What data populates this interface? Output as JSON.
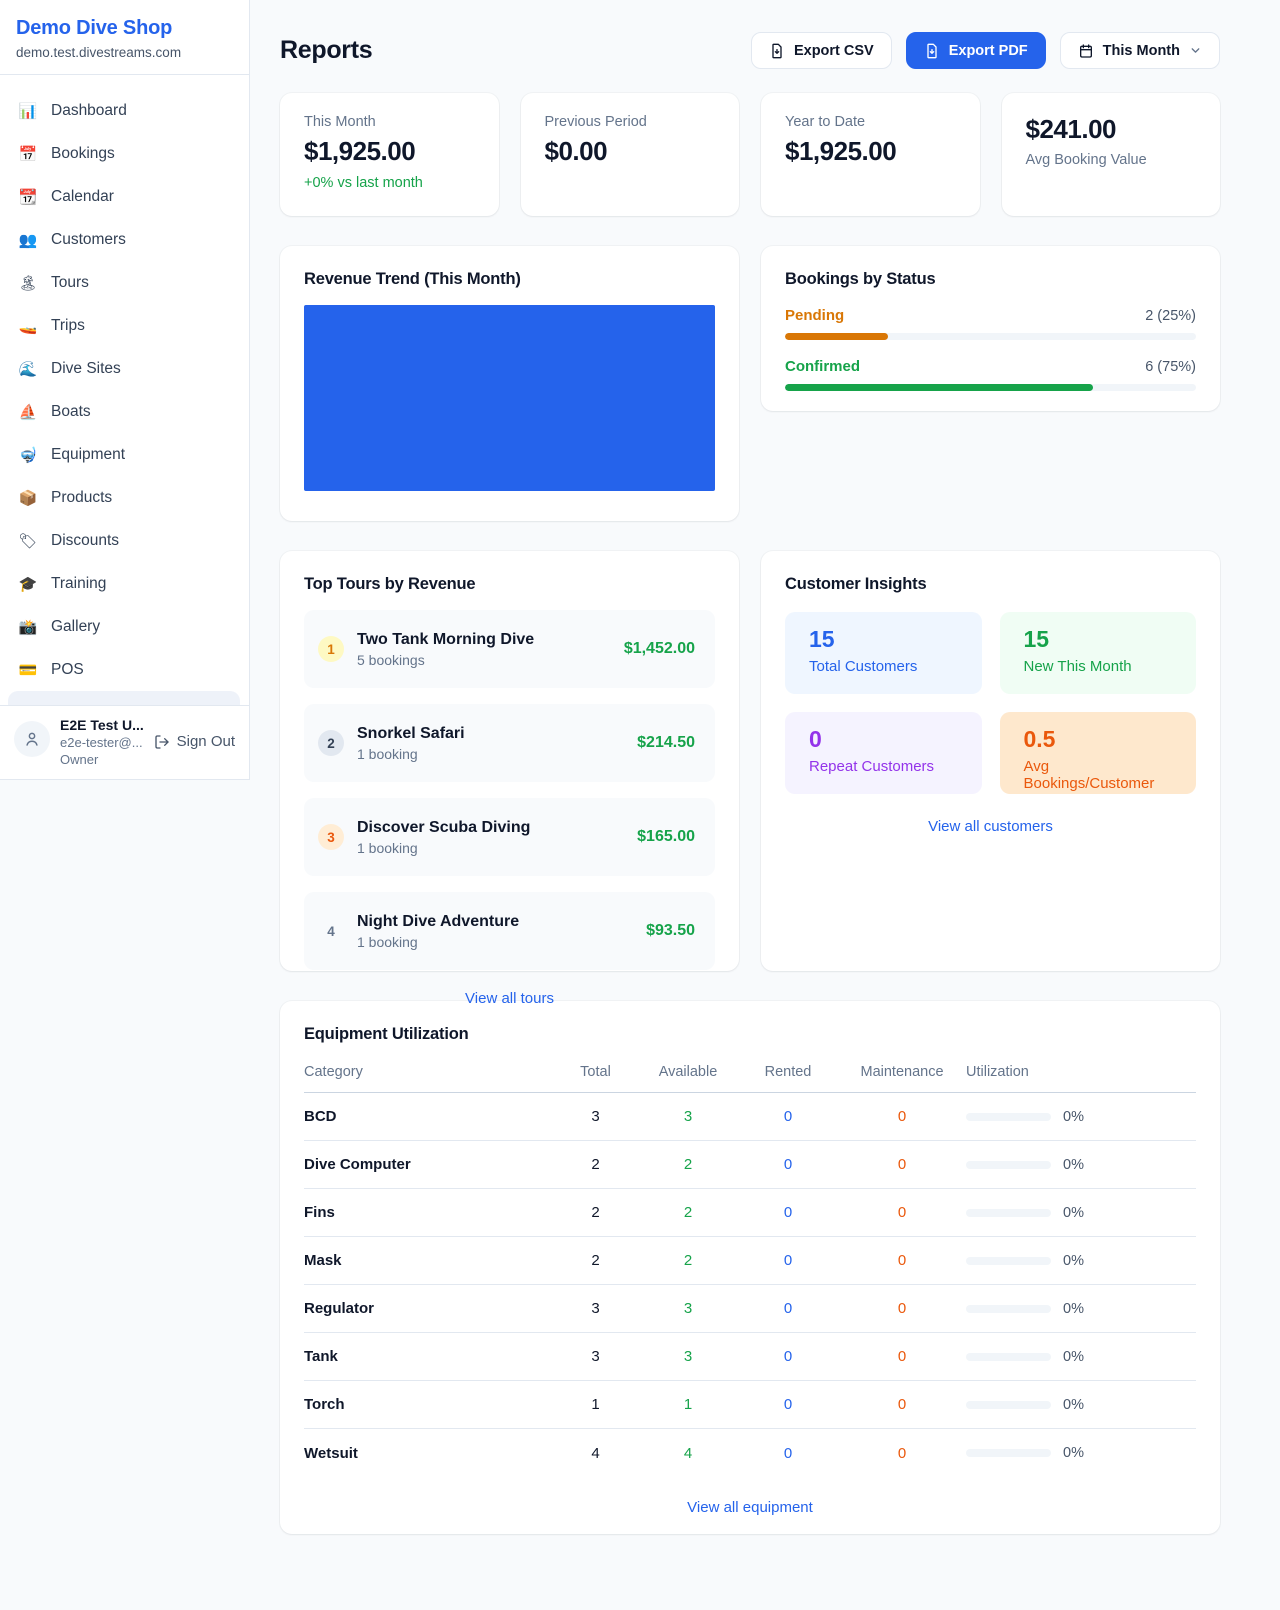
{
  "colors": {
    "accent_blue": "#2563eb",
    "green": "#16a34a",
    "pending_orange": "#d97706",
    "maintenance_orange": "#ea580c",
    "purple": "#9333ea"
  },
  "sidebar": {
    "brand": {
      "name": "Demo Dive Shop",
      "domain": "demo.test.divestreams.com"
    },
    "nav": [
      {
        "icon": "📊",
        "icon_name": "dashboard-icon",
        "label": "Dashboard"
      },
      {
        "icon": "📅",
        "icon_name": "bookings-icon",
        "label": "Bookings"
      },
      {
        "icon": "📆",
        "icon_name": "calendar-icon",
        "label": "Calendar"
      },
      {
        "icon": "👥",
        "icon_name": "customers-icon",
        "label": "Customers"
      },
      {
        "icon": "🏝",
        "icon_name": "tours-icon",
        "label": "Tours"
      },
      {
        "icon": "🚤",
        "icon_name": "trips-icon",
        "label": "Trips"
      },
      {
        "icon": "🌊",
        "icon_name": "dive-sites-icon",
        "label": "Dive Sites"
      },
      {
        "icon": "⛵",
        "icon_name": "boats-icon",
        "label": "Boats"
      },
      {
        "icon": "🤿",
        "icon_name": "equipment-icon",
        "label": "Equipment"
      },
      {
        "icon": "📦",
        "icon_name": "products-icon",
        "label": "Products"
      },
      {
        "icon": "🏷",
        "icon_name": "discounts-icon",
        "label": "Discounts"
      },
      {
        "icon": "🎓",
        "icon_name": "training-icon",
        "label": "Training"
      },
      {
        "icon": "📸",
        "icon_name": "gallery-icon",
        "label": "Gallery"
      },
      {
        "icon": "💳",
        "icon_name": "pos-icon",
        "label": "POS"
      }
    ],
    "user": {
      "name": "E2E Test U...",
      "email": "e2e-tester@...",
      "role": "Owner",
      "sign_out": "Sign Out"
    }
  },
  "header": {
    "title": "Reports",
    "export_csv": "Export CSV",
    "export_pdf": "Export PDF",
    "period": "This Month"
  },
  "stats": [
    {
      "label": "This Month",
      "value": "$1,925.00",
      "sub": "+0% vs last month"
    },
    {
      "label": "Previous Period",
      "value": "$0.00"
    },
    {
      "label": "Year to Date",
      "value": "$1,925.00"
    },
    {
      "label": "Avg Booking Value",
      "value": "$241.00",
      "value_first": true
    }
  ],
  "revenue_trend": {
    "title": "Revenue Trend (This Month)",
    "bar_color": "#2563eb",
    "note": "single solid bar filling the whole plot area, no axis labels visible"
  },
  "bookings_by_status": {
    "title": "Bookings by Status",
    "rows": [
      {
        "label": "Pending",
        "value": "2 (25%)",
        "pct": 25,
        "color": "#d97706"
      },
      {
        "label": "Confirmed",
        "value": "6 (75%)",
        "pct": 75,
        "color": "#16a34a"
      }
    ]
  },
  "top_tours": {
    "title": "Top Tours by Revenue",
    "rows": [
      {
        "rank": "1",
        "name": "Two Tank Morning Dive",
        "bookings": "5 bookings",
        "amount": "$1,452.00"
      },
      {
        "rank": "2",
        "name": "Snorkel Safari",
        "bookings": "1 booking",
        "amount": "$214.50"
      },
      {
        "rank": "3",
        "name": "Discover Scuba Diving",
        "bookings": "1 booking",
        "amount": "$165.00"
      },
      {
        "rank": "4",
        "name": "Night Dive Adventure",
        "bookings": "1 booking",
        "amount": "$93.50"
      }
    ],
    "link": "View all tours"
  },
  "customer_insights": {
    "title": "Customer Insights",
    "tiles": [
      {
        "value": "15",
        "label": "Total Customers",
        "theme": "blue"
      },
      {
        "value": "15",
        "label": "New This Month",
        "theme": "green"
      },
      {
        "value": "0",
        "label": "Repeat Customers",
        "theme": "purple"
      },
      {
        "value": "0.5",
        "label": "Avg Bookings/Customer",
        "theme": "orange"
      }
    ],
    "link": "View all customers"
  },
  "equipment": {
    "title": "Equipment Utilization",
    "columns": [
      "Category",
      "Total",
      "Available",
      "Rented",
      "Maintenance",
      "Utilization"
    ],
    "rows": [
      {
        "category": "BCD",
        "total": "3",
        "available": "3",
        "rented": "0",
        "maintenance": "0",
        "utilization": "0%"
      },
      {
        "category": "Dive Computer",
        "total": "2",
        "available": "2",
        "rented": "0",
        "maintenance": "0",
        "utilization": "0%"
      },
      {
        "category": "Fins",
        "total": "2",
        "available": "2",
        "rented": "0",
        "maintenance": "0",
        "utilization": "0%"
      },
      {
        "category": "Mask",
        "total": "2",
        "available": "2",
        "rented": "0",
        "maintenance": "0",
        "utilization": "0%"
      },
      {
        "category": "Regulator",
        "total": "3",
        "available": "3",
        "rented": "0",
        "maintenance": "0",
        "utilization": "0%"
      },
      {
        "category": "Tank",
        "total": "3",
        "available": "3",
        "rented": "0",
        "maintenance": "0",
        "utilization": "0%"
      },
      {
        "category": "Torch",
        "total": "1",
        "available": "1",
        "rented": "0",
        "maintenance": "0",
        "utilization": "0%"
      },
      {
        "category": "Wetsuit",
        "total": "4",
        "available": "4",
        "rented": "0",
        "maintenance": "0",
        "utilization": "0%"
      }
    ],
    "link": "View all equipment"
  }
}
